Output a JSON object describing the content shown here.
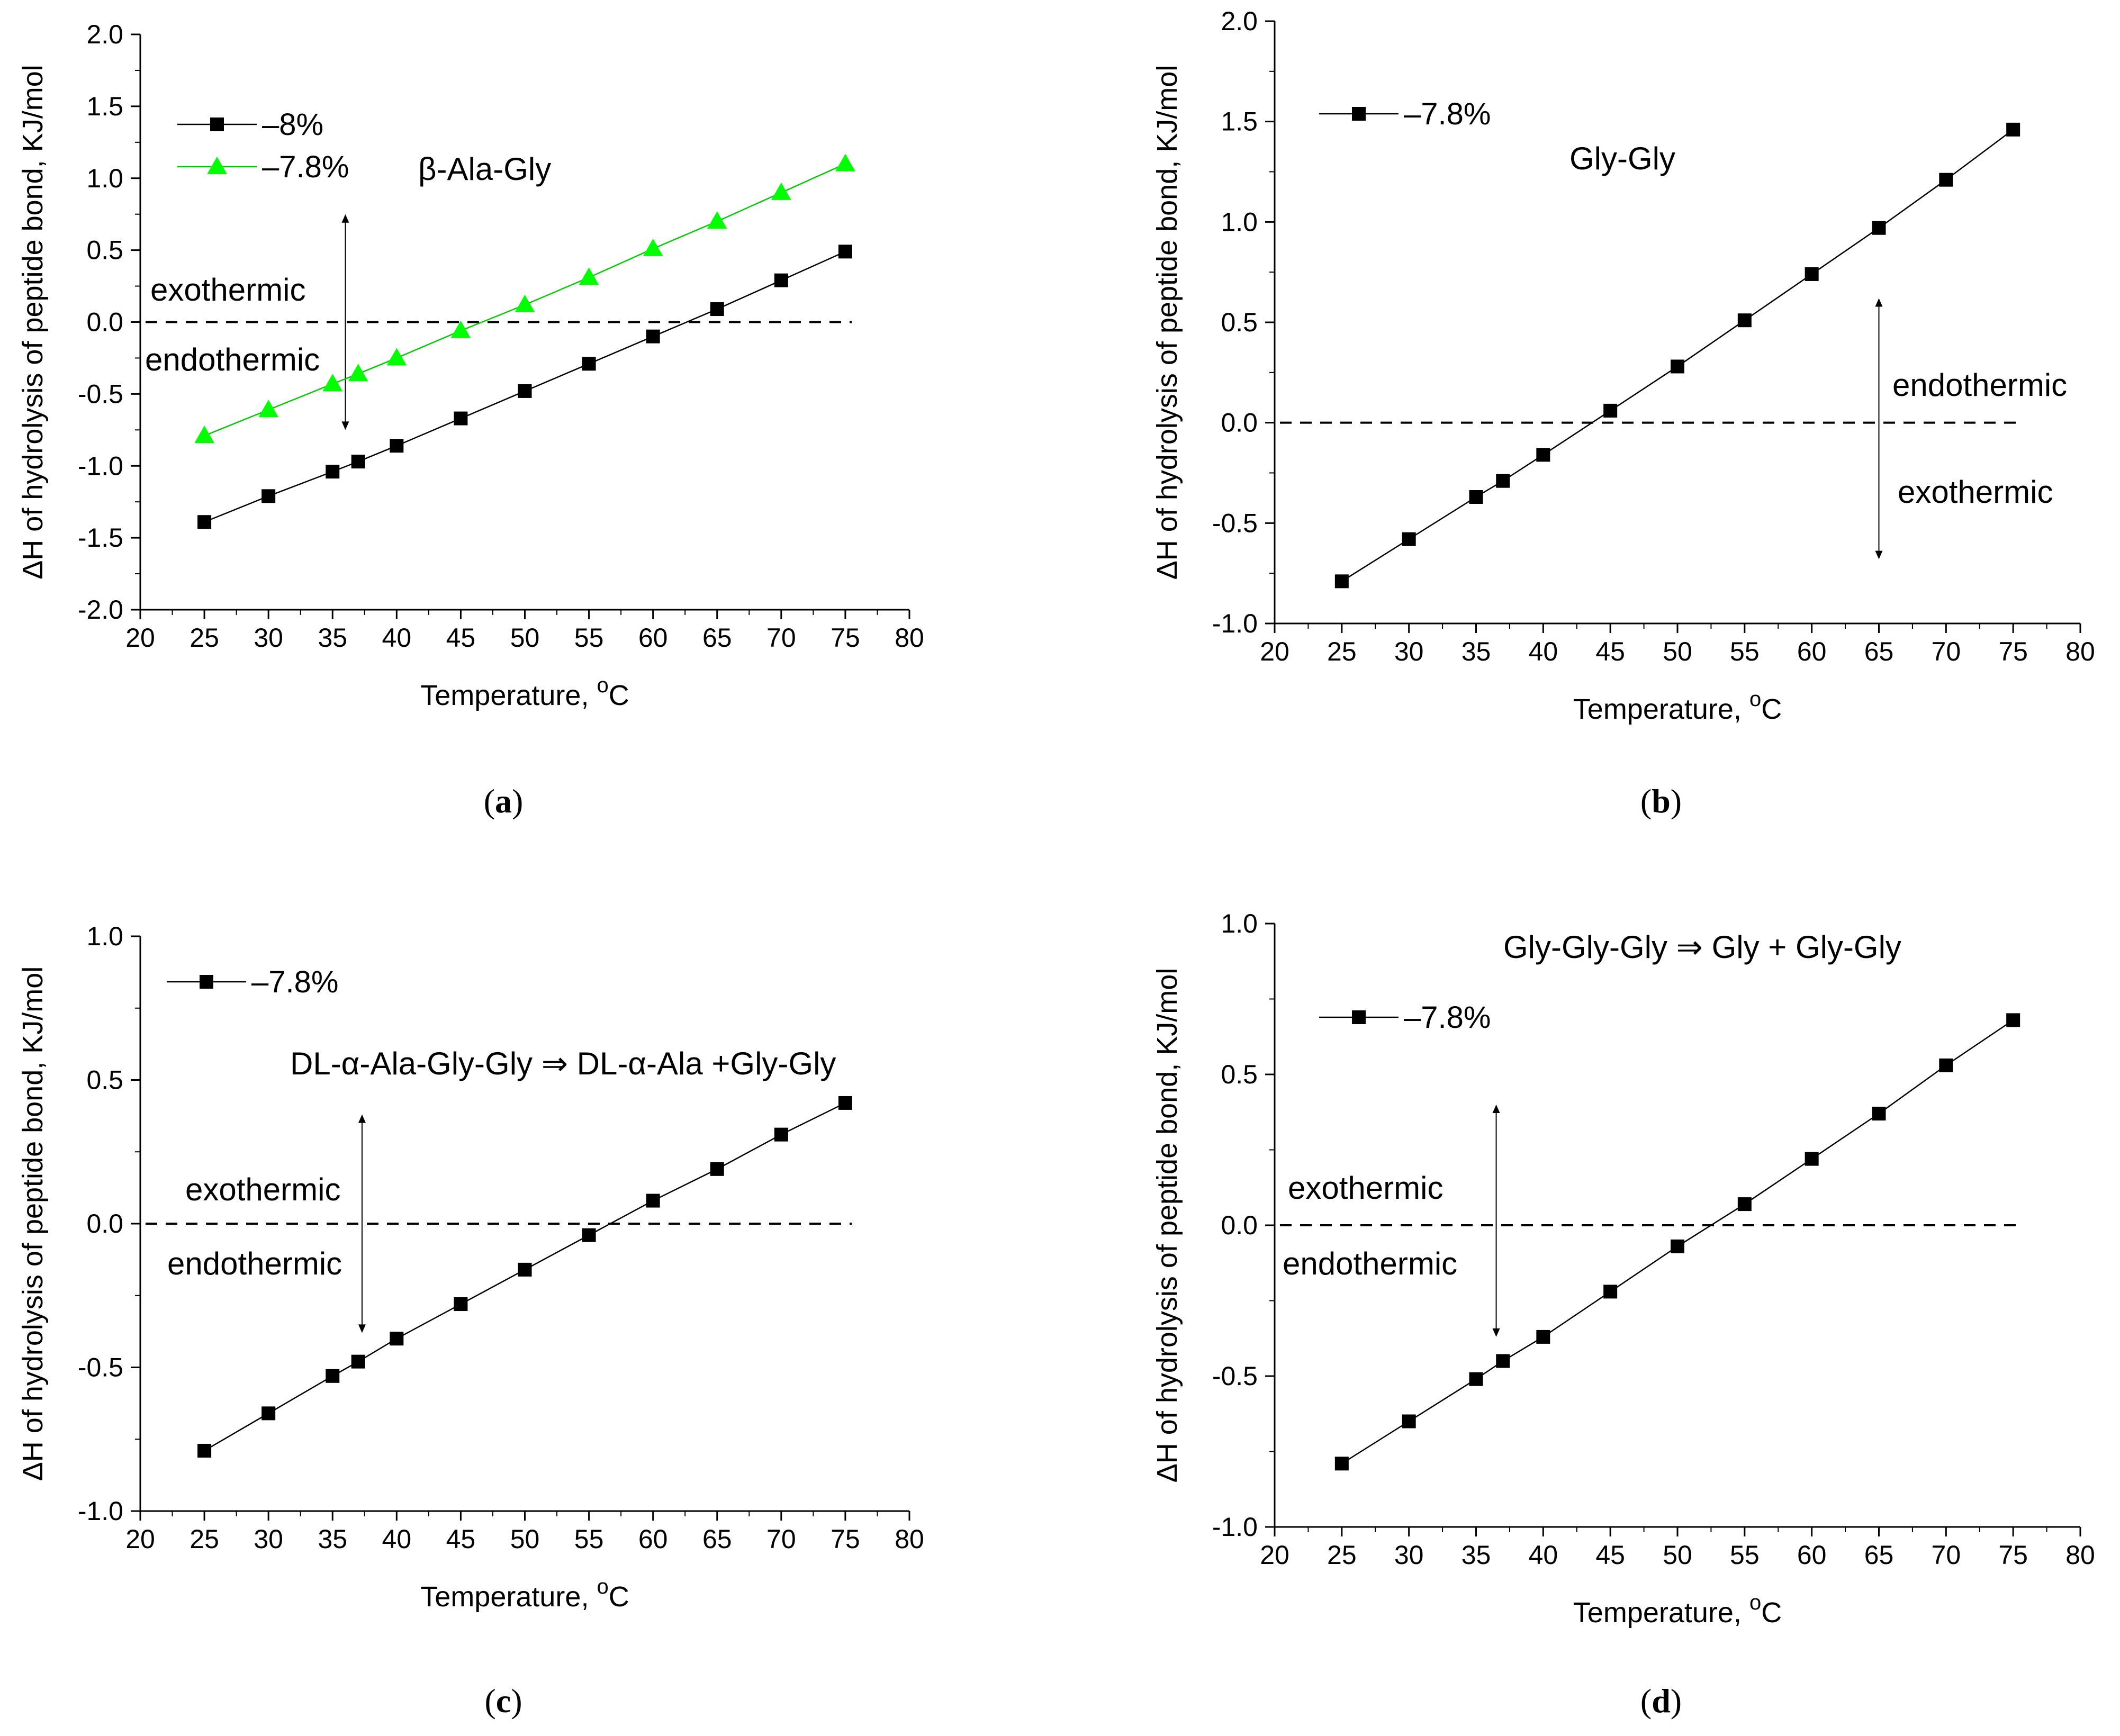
{
  "chart_data": [
    {
      "panel": "a",
      "type": "line",
      "x": [
        25,
        30,
        35,
        37,
        40,
        45,
        50,
        55,
        60,
        65,
        70,
        75
      ],
      "series": [
        {
          "name": "–8%",
          "color": "#000000",
          "marker": "square",
          "values": [
            -1.39,
            -1.21,
            -1.04,
            -0.97,
            -0.86,
            -0.67,
            -0.48,
            -0.29,
            -0.1,
            0.09,
            0.29,
            0.49
          ]
        },
        {
          "name": "–7.8%",
          "color": "#00ff00",
          "marker": "triangle",
          "values": [
            -0.79,
            -0.61,
            -0.43,
            -0.36,
            -0.25,
            -0.06,
            0.12,
            0.31,
            0.51,
            0.7,
            0.9,
            1.1
          ]
        }
      ],
      "title": "β-Ala-Gly",
      "xlabel": "Temperature, ",
      "xlabel_sup": "o",
      "xlabel_unit": "C",
      "ylabel": "ΔH of hydrolysis of peptide bond, KJ/mol",
      "xlim": [
        20,
        80
      ],
      "ylim": [
        -2.0,
        2.0
      ],
      "xticks": [
        "20",
        "25",
        "30",
        "35",
        "40",
        "45",
        "50",
        "55",
        "60",
        "65",
        "70",
        "75",
        "80"
      ],
      "yticks": [
        "-2.0",
        "-1.5",
        "-1.0",
        "-0.5",
        "0.0",
        "0.5",
        "1.0",
        "1.5",
        "2.0"
      ],
      "yticks_values": [
        -2.0,
        -1.5,
        -1.0,
        -0.5,
        0.0,
        0.5,
        1.0,
        1.5,
        2.0
      ],
      "reference_line": 0.0,
      "annotation_upper": "exothermic",
      "annotation_lower": "endothermic",
      "arrow_x": 36,
      "arrow_range": [
        -0.75,
        0.75
      ],
      "label": "a"
    },
    {
      "panel": "b",
      "type": "line",
      "x": [
        25,
        30,
        35,
        37,
        40,
        45,
        50,
        55,
        60,
        65,
        70,
        75
      ],
      "series": [
        {
          "name": "–7.8%",
          "color": "#000000",
          "marker": "square",
          "values": [
            -0.79,
            -0.58,
            -0.37,
            -0.29,
            -0.16,
            0.06,
            0.28,
            0.51,
            0.74,
            0.97,
            1.21,
            1.46
          ]
        }
      ],
      "title": "Gly-Gly",
      "xlabel": "Temperature, ",
      "xlabel_sup": "o",
      "xlabel_unit": "C",
      "ylabel": "ΔH of hydrolysis of peptide bond, KJ/mol",
      "xlim": [
        20,
        80
      ],
      "ylim": [
        -1.0,
        2.0
      ],
      "xticks": [
        "20",
        "25",
        "30",
        "35",
        "40",
        "45",
        "50",
        "55",
        "60",
        "65",
        "70",
        "75",
        "80"
      ],
      "yticks": [
        "-1.0",
        "-0.5",
        "0.0",
        "0.5",
        "1.0",
        "1.5",
        "2.0"
      ],
      "yticks_values": [
        -1.0,
        -0.5,
        0.0,
        0.5,
        1.0,
        1.5,
        2.0
      ],
      "reference_line": 0.0,
      "annotation_upper": "endothermic",
      "annotation_lower": "exothermic",
      "arrow_x": 65,
      "arrow_range": [
        -0.68,
        0.62
      ],
      "label": "b"
    },
    {
      "panel": "c",
      "type": "line",
      "x": [
        25,
        30,
        35,
        37,
        40,
        45,
        50,
        55,
        60,
        65,
        70,
        75
      ],
      "series": [
        {
          "name": "–7.8%",
          "color": "#000000",
          "marker": "square",
          "values": [
            -0.79,
            -0.66,
            -0.53,
            -0.48,
            -0.4,
            -0.28,
            -0.16,
            -0.04,
            0.08,
            0.19,
            0.31,
            0.42
          ]
        }
      ],
      "title": "DL-α-Ala-Gly-Gly ⇒ DL-α-Ala +Gly-Gly",
      "xlabel": "Temperature, ",
      "xlabel_sup": "o",
      "xlabel_unit": "C",
      "ylabel": "ΔH of hydrolysis of peptide bond, KJ/mol",
      "xlim": [
        20,
        80
      ],
      "ylim": [
        -1.0,
        1.0
      ],
      "xticks": [
        "20",
        "25",
        "30",
        "35",
        "40",
        "45",
        "50",
        "55",
        "60",
        "65",
        "70",
        "75",
        "80"
      ],
      "yticks": [
        "-1.0",
        "-0.5",
        "0.0",
        "0.5",
        "1.0"
      ],
      "yticks_values": [
        -1.0,
        -0.5,
        0.0,
        0.5,
        1.0
      ],
      "reference_line": 0.0,
      "annotation_upper": "exothermic",
      "annotation_lower": "endothermic",
      "arrow_x": 37.3,
      "arrow_range": [
        -0.38,
        0.38
      ],
      "label": "c"
    },
    {
      "panel": "d",
      "type": "line",
      "x": [
        25,
        30,
        35,
        37,
        40,
        45,
        50,
        55,
        60,
        65,
        70,
        75
      ],
      "series": [
        {
          "name": "–7.8%",
          "color": "#000000",
          "marker": "square",
          "values": [
            -0.79,
            -0.65,
            -0.51,
            -0.45,
            -0.37,
            -0.22,
            -0.07,
            0.07,
            0.22,
            0.37,
            0.53,
            0.68
          ]
        }
      ],
      "title": "Gly-Gly-Gly ⇒ Gly + Gly-Gly",
      "xlabel": "Temperature, ",
      "xlabel_sup": "o",
      "xlabel_unit": "C",
      "ylabel": "ΔH of hydrolysis of peptide bond, KJ/mol",
      "xlim": [
        20,
        80
      ],
      "ylim": [
        -1.0,
        1.0
      ],
      "xticks": [
        "20",
        "25",
        "30",
        "35",
        "40",
        "45",
        "50",
        "55",
        "60",
        "65",
        "70",
        "75",
        "80"
      ],
      "yticks": [
        "-1.0",
        "-0.5",
        "0.0",
        "0.5",
        "1.0"
      ],
      "yticks_values": [
        -1.0,
        -0.5,
        0.0,
        0.5,
        1.0
      ],
      "reference_line": 0.0,
      "annotation_upper": "exothermic",
      "annotation_lower": "endothermic",
      "arrow_x": 36.5,
      "arrow_range": [
        -0.37,
        0.4
      ],
      "label": "d"
    }
  ]
}
